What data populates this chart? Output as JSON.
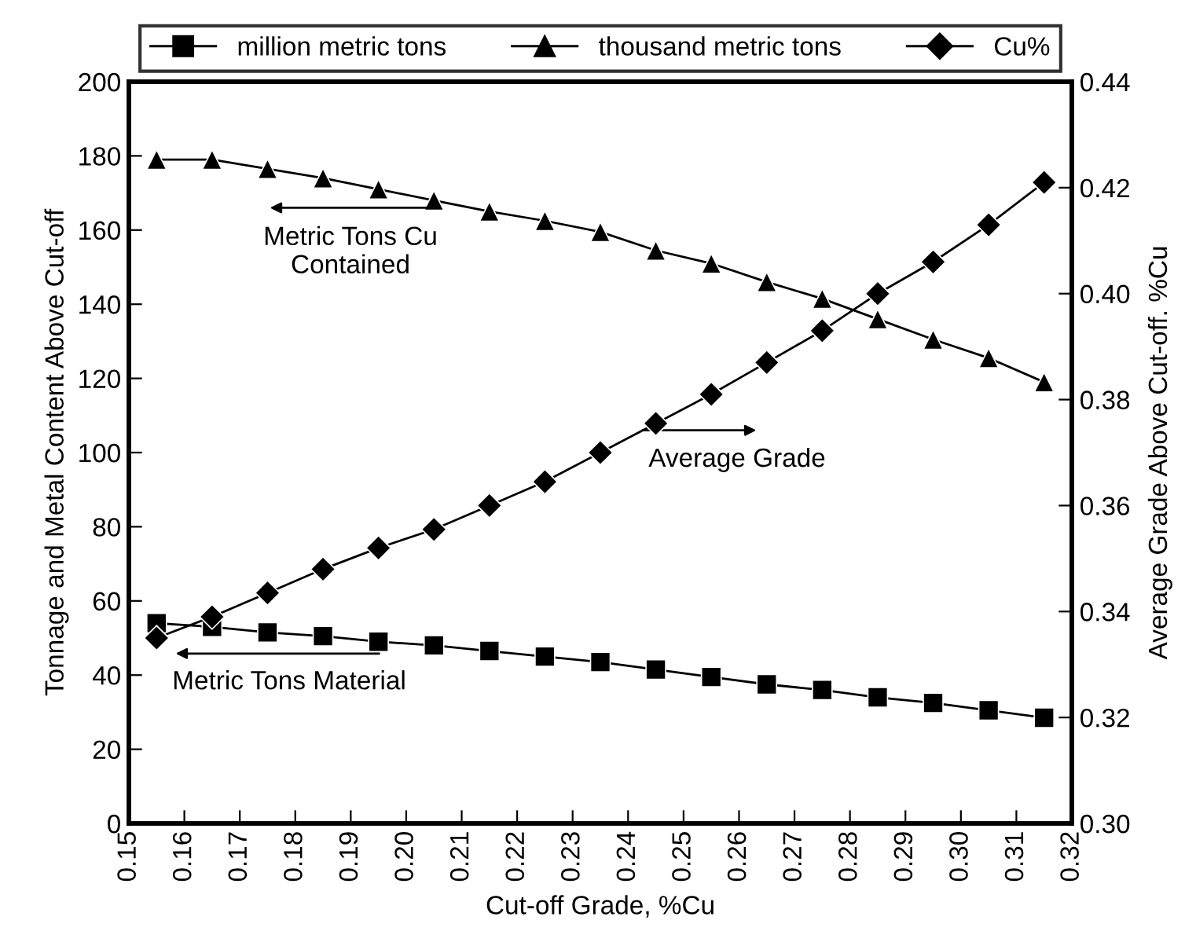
{
  "chart_data": {
    "type": "line",
    "xlabel": "Cut-off Grade, %Cu",
    "ylabel": "Tonnage and Metal Content Above Cut-off",
    "y2label": "Average Grade Above Cut-off. %Cu",
    "x": [
      0.155,
      0.165,
      0.175,
      0.185,
      0.195,
      0.205,
      0.215,
      0.225,
      0.235,
      0.245,
      0.255,
      0.265,
      0.275,
      0.285,
      0.295,
      0.305,
      0.315
    ],
    "series": [
      {
        "name": "million metric tons",
        "color": "#000000",
        "marker": "square",
        "values": [
          54,
          53,
          51.5,
          50.5,
          49,
          48,
          46.5,
          45,
          43.5,
          41.5,
          39.5,
          37.5,
          36,
          34,
          32.5,
          30.5,
          28.5
        ]
      },
      {
        "name": "thousand metric tons",
        "color": "#000000",
        "marker": "triangle",
        "values": [
          179,
          179,
          176.5,
          174,
          171,
          168,
          165,
          162.5,
          159.5,
          154.5,
          151,
          146,
          141.5,
          136,
          130.5,
          125.5,
          119
        ]
      },
      {
        "name": "Cu%",
        "color": "#000000",
        "marker": "diamond",
        "axis": "y2",
        "values": [
          0.335,
          0.339,
          0.3435,
          0.348,
          0.352,
          0.3555,
          0.36,
          0.3645,
          0.37,
          0.3755,
          0.381,
          0.387,
          0.393,
          0.4,
          0.406,
          0.413,
          0.421
        ]
      }
    ],
    "xlim": [
      0.15,
      0.32
    ],
    "xticks": [
      {
        "value": 0.15,
        "label": "0.15"
      },
      {
        "value": 0.16,
        "label": "0.16"
      },
      {
        "value": 0.17,
        "label": "0.17"
      },
      {
        "value": 0.18,
        "label": "0.18"
      },
      {
        "value": 0.19,
        "label": "0.19"
      },
      {
        "value": 0.2,
        "label": "0.20"
      },
      {
        "value": 0.21,
        "label": "0.21"
      },
      {
        "value": 0.22,
        "label": "0.22"
      },
      {
        "value": 0.23,
        "label": "0.23"
      },
      {
        "value": 0.24,
        "label": "0.24"
      },
      {
        "value": 0.25,
        "label": "0.25"
      },
      {
        "value": 0.26,
        "label": "0.26"
      },
      {
        "value": 0.27,
        "label": "0.27"
      },
      {
        "value": 0.28,
        "label": "0.28"
      },
      {
        "value": 0.29,
        "label": "0.29"
      },
      {
        "value": 0.3,
        "label": "0.30"
      },
      {
        "value": 0.31,
        "label": "0.31"
      },
      {
        "value": 0.32,
        "label": "0.32"
      }
    ],
    "ylim": [
      0,
      200
    ],
    "yticks": [
      0,
      20,
      40,
      60,
      80,
      100,
      120,
      140,
      160,
      180,
      200
    ],
    "y2lim": [
      0.3,
      0.44
    ],
    "y2ticks": [
      {
        "value": 0.3,
        "label": "0.30"
      },
      {
        "value": 0.32,
        "label": "0.32"
      },
      {
        "value": 0.34,
        "label": "0.34"
      },
      {
        "value": 0.36,
        "label": "0.36"
      },
      {
        "value": 0.38,
        "label": "0.38"
      },
      {
        "value": 0.4,
        "label": "0.40"
      },
      {
        "value": 0.42,
        "label": "0.42"
      },
      {
        "value": 0.44,
        "label": "0.44"
      }
    ],
    "annotations": [
      "Metric Tons Cu\nContained",
      "Average Grade",
      "Metric Tons Material"
    ],
    "legend": "top",
    "grid": false,
    "line_style": "solid"
  }
}
